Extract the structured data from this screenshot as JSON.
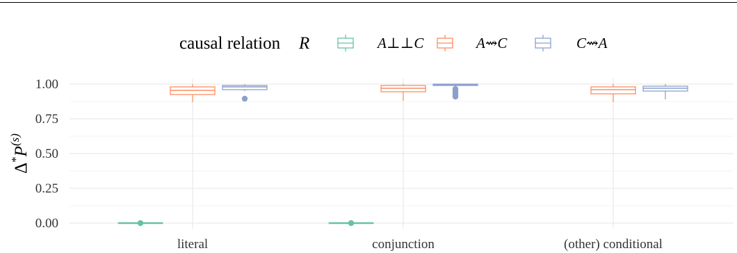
{
  "chart_data": {
    "type": "boxplot",
    "title": "",
    "xlabel": "",
    "ylabel_main": "Δ*P",
    "ylabel_sup": "(s)",
    "ylim": [
      0,
      1
    ],
    "yticks": [
      "0.00",
      "0.25",
      "0.50",
      "0.75",
      "1.00"
    ],
    "categories": [
      "literal",
      "conjunction",
      "(other) conditional"
    ],
    "legend": {
      "title_text": "causal relation",
      "title_var": "R",
      "position": "top"
    },
    "series": [
      {
        "name": "A⊥⊥C",
        "color": "#66c2a5",
        "boxes": [
          {
            "min": 0.0,
            "q1": 0.0,
            "median": 0.0,
            "q3": 0.0,
            "max": 0.0,
            "outliers": [
              0.0
            ]
          },
          {
            "min": 0.0,
            "q1": 0.0,
            "median": 0.0,
            "q3": 0.0,
            "max": 0.0,
            "outliers": [
              0.0
            ]
          },
          null
        ]
      },
      {
        "name": "A⇝C",
        "color": "#fc8d62",
        "boxes": [
          {
            "min": 0.87,
            "q1": 0.925,
            "median": 0.955,
            "q3": 0.98,
            "max": 1.0,
            "outliers": []
          },
          {
            "min": 0.88,
            "q1": 0.945,
            "median": 0.97,
            "q3": 0.99,
            "max": 1.0,
            "outliers": []
          },
          {
            "min": 0.87,
            "q1": 0.93,
            "median": 0.96,
            "q3": 0.98,
            "max": 1.0,
            "outliers": []
          }
        ]
      },
      {
        "name": "C⇝A",
        "color": "#8da0cb",
        "boxes": [
          {
            "min": 0.95,
            "q1": 0.96,
            "median": 0.98,
            "q3": 0.99,
            "max": 1.0,
            "outliers": [
              0.895
            ]
          },
          {
            "min": 0.985,
            "q1": 0.99,
            "median": 0.995,
            "q3": 1.0,
            "max": 1.0,
            "outliers": [
              0.965,
              0.955,
              0.94,
              0.925,
              0.91
            ]
          },
          {
            "min": 0.89,
            "q1": 0.95,
            "median": 0.97,
            "q3": 0.985,
            "max": 1.0,
            "outliers": []
          }
        ]
      }
    ]
  }
}
